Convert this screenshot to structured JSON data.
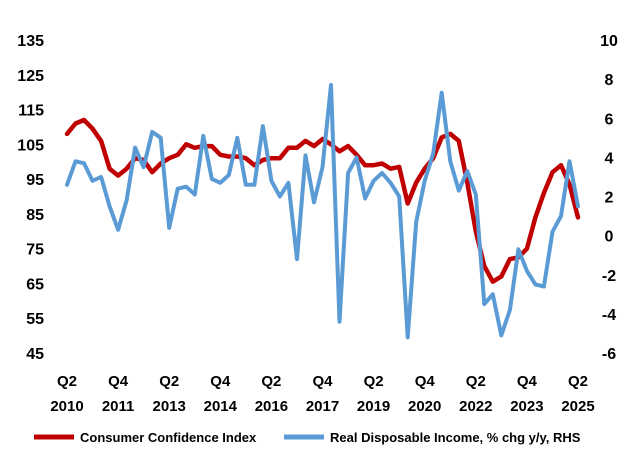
{
  "chart_data": {
    "type": "line",
    "title": "",
    "left_axis": {
      "ylim": [
        45,
        135
      ],
      "ticks": [
        45,
        55,
        65,
        75,
        85,
        95,
        105,
        115,
        125,
        135
      ]
    },
    "right_axis": {
      "ylim": [
        -6,
        10
      ],
      "ticks": [
        -6,
        -4,
        -2,
        0,
        2,
        4,
        6,
        8,
        10
      ]
    },
    "x_axis": {
      "start": 2010.25,
      "end": 2025.25,
      "tick_labels": [
        {
          "q": "Q2",
          "year": "2010",
          "x": 2010.25
        },
        {
          "q": "Q4",
          "year": "2011",
          "x": 2011.75
        },
        {
          "q": "Q2",
          "year": "2013",
          "x": 2013.25
        },
        {
          "q": "Q4",
          "year": "2014",
          "x": 2014.75
        },
        {
          "q": "Q2",
          "year": "2016",
          "x": 2016.25
        },
        {
          "q": "Q4",
          "year": "2017",
          "x": 2017.75
        },
        {
          "q": "Q2",
          "year": "2019",
          "x": 2019.25
        },
        {
          "q": "Q4",
          "year": "2020",
          "x": 2020.75
        },
        {
          "q": "Q2",
          "year": "2022",
          "x": 2022.25
        },
        {
          "q": "Q4",
          "year": "2023",
          "x": 2023.75
        },
        {
          "q": "Q2",
          "year": "2025",
          "x": 2025.25
        }
      ]
    },
    "grid": false,
    "legend_position": "bottom",
    "series": [
      {
        "name": "Consumer Confidence Index",
        "axis": "left",
        "color": "#c00000",
        "points": [
          [
            2010.25,
            108
          ],
          [
            2010.5,
            111
          ],
          [
            2010.75,
            112
          ],
          [
            2011.0,
            109.5
          ],
          [
            2011.25,
            106
          ],
          [
            2011.5,
            98
          ],
          [
            2011.75,
            96
          ],
          [
            2012.0,
            98
          ],
          [
            2012.25,
            101
          ],
          [
            2012.5,
            100.5
          ],
          [
            2012.75,
            97
          ],
          [
            2013.0,
            99.5
          ],
          [
            2013.25,
            101
          ],
          [
            2013.5,
            102
          ],
          [
            2013.75,
            105
          ],
          [
            2014.0,
            104
          ],
          [
            2014.25,
            104.5
          ],
          [
            2014.5,
            104.5
          ],
          [
            2014.75,
            102
          ],
          [
            2015.0,
            101.5
          ],
          [
            2015.25,
            101.5
          ],
          [
            2015.5,
            101
          ],
          [
            2015.75,
            99
          ],
          [
            2016.0,
            100.5
          ],
          [
            2016.25,
            101
          ],
          [
            2016.5,
            101
          ],
          [
            2016.75,
            104
          ],
          [
            2017.0,
            104
          ],
          [
            2017.25,
            106
          ],
          [
            2017.5,
            104.5
          ],
          [
            2017.75,
            106.5
          ],
          [
            2018.0,
            105
          ],
          [
            2018.25,
            103
          ],
          [
            2018.5,
            104.5
          ],
          [
            2018.75,
            102
          ],
          [
            2019.0,
            99
          ],
          [
            2019.25,
            99
          ],
          [
            2019.5,
            99.5
          ],
          [
            2019.75,
            98
          ],
          [
            2020.0,
            98.5
          ],
          [
            2020.25,
            88
          ],
          [
            2020.5,
            94
          ],
          [
            2020.75,
            98
          ],
          [
            2021.0,
            101
          ],
          [
            2021.25,
            107
          ],
          [
            2021.5,
            108
          ],
          [
            2021.75,
            106
          ],
          [
            2022.0,
            94
          ],
          [
            2022.25,
            80
          ],
          [
            2022.5,
            70
          ],
          [
            2022.75,
            65.5
          ],
          [
            2023.0,
            67
          ],
          [
            2023.25,
            72
          ],
          [
            2023.5,
            72.5
          ],
          [
            2023.75,
            75
          ],
          [
            2024.0,
            84
          ],
          [
            2024.25,
            91
          ],
          [
            2024.5,
            97
          ],
          [
            2024.75,
            99
          ],
          [
            2025.0,
            93.5
          ],
          [
            2025.25,
            84
          ]
        ]
      },
      {
        "name": "Real Disposable Income, % chg y/y, RHS",
        "axis": "right",
        "color": "#5b9bd5",
        "points": [
          [
            2010.25,
            2.6
          ],
          [
            2010.5,
            3.8
          ],
          [
            2010.75,
            3.7
          ],
          [
            2011.0,
            2.8
          ],
          [
            2011.25,
            3.0
          ],
          [
            2011.5,
            1.5
          ],
          [
            2011.75,
            0.3
          ],
          [
            2012.0,
            1.8
          ],
          [
            2012.25,
            4.5
          ],
          [
            2012.5,
            3.5
          ],
          [
            2012.75,
            5.3
          ],
          [
            2013.0,
            5.0
          ],
          [
            2013.25,
            0.4
          ],
          [
            2013.5,
            2.4
          ],
          [
            2013.75,
            2.5
          ],
          [
            2014.0,
            2.1
          ],
          [
            2014.25,
            5.1
          ],
          [
            2014.5,
            2.9
          ],
          [
            2014.75,
            2.7
          ],
          [
            2015.0,
            3.1
          ],
          [
            2015.25,
            5.0
          ],
          [
            2015.5,
            2.6
          ],
          [
            2015.75,
            2.6
          ],
          [
            2016.0,
            5.6
          ],
          [
            2016.25,
            2.8
          ],
          [
            2016.5,
            2.0
          ],
          [
            2016.75,
            2.7
          ],
          [
            2017.0,
            -1.2
          ],
          [
            2017.25,
            4.1
          ],
          [
            2017.5,
            1.7
          ],
          [
            2017.75,
            3.5
          ],
          [
            2018.0,
            7.7
          ],
          [
            2018.25,
            -4.4
          ],
          [
            2018.5,
            3.2
          ],
          [
            2018.75,
            4.0
          ],
          [
            2019.0,
            1.9
          ],
          [
            2019.25,
            2.8
          ],
          [
            2019.5,
            3.2
          ],
          [
            2019.75,
            2.7
          ],
          [
            2020.0,
            2.0
          ],
          [
            2020.25,
            -5.2
          ],
          [
            2020.5,
            0.7
          ],
          [
            2020.75,
            2.8
          ],
          [
            2021.0,
            4.2
          ],
          [
            2021.25,
            7.3
          ],
          [
            2021.5,
            3.8
          ],
          [
            2021.75,
            2.3
          ],
          [
            2022.0,
            3.3
          ],
          [
            2022.25,
            2.1
          ],
          [
            2022.5,
            -3.5
          ],
          [
            2022.75,
            -3.0
          ],
          [
            2023.0,
            -5.1
          ],
          [
            2023.25,
            -3.8
          ],
          [
            2023.5,
            -0.7
          ],
          [
            2023.75,
            -1.8
          ],
          [
            2024.0,
            -2.5
          ],
          [
            2024.25,
            -2.6
          ],
          [
            2024.5,
            0.2
          ],
          [
            2024.75,
            1.0
          ],
          [
            2025.0,
            3.8
          ],
          [
            2025.25,
            1.5
          ]
        ]
      }
    ]
  }
}
